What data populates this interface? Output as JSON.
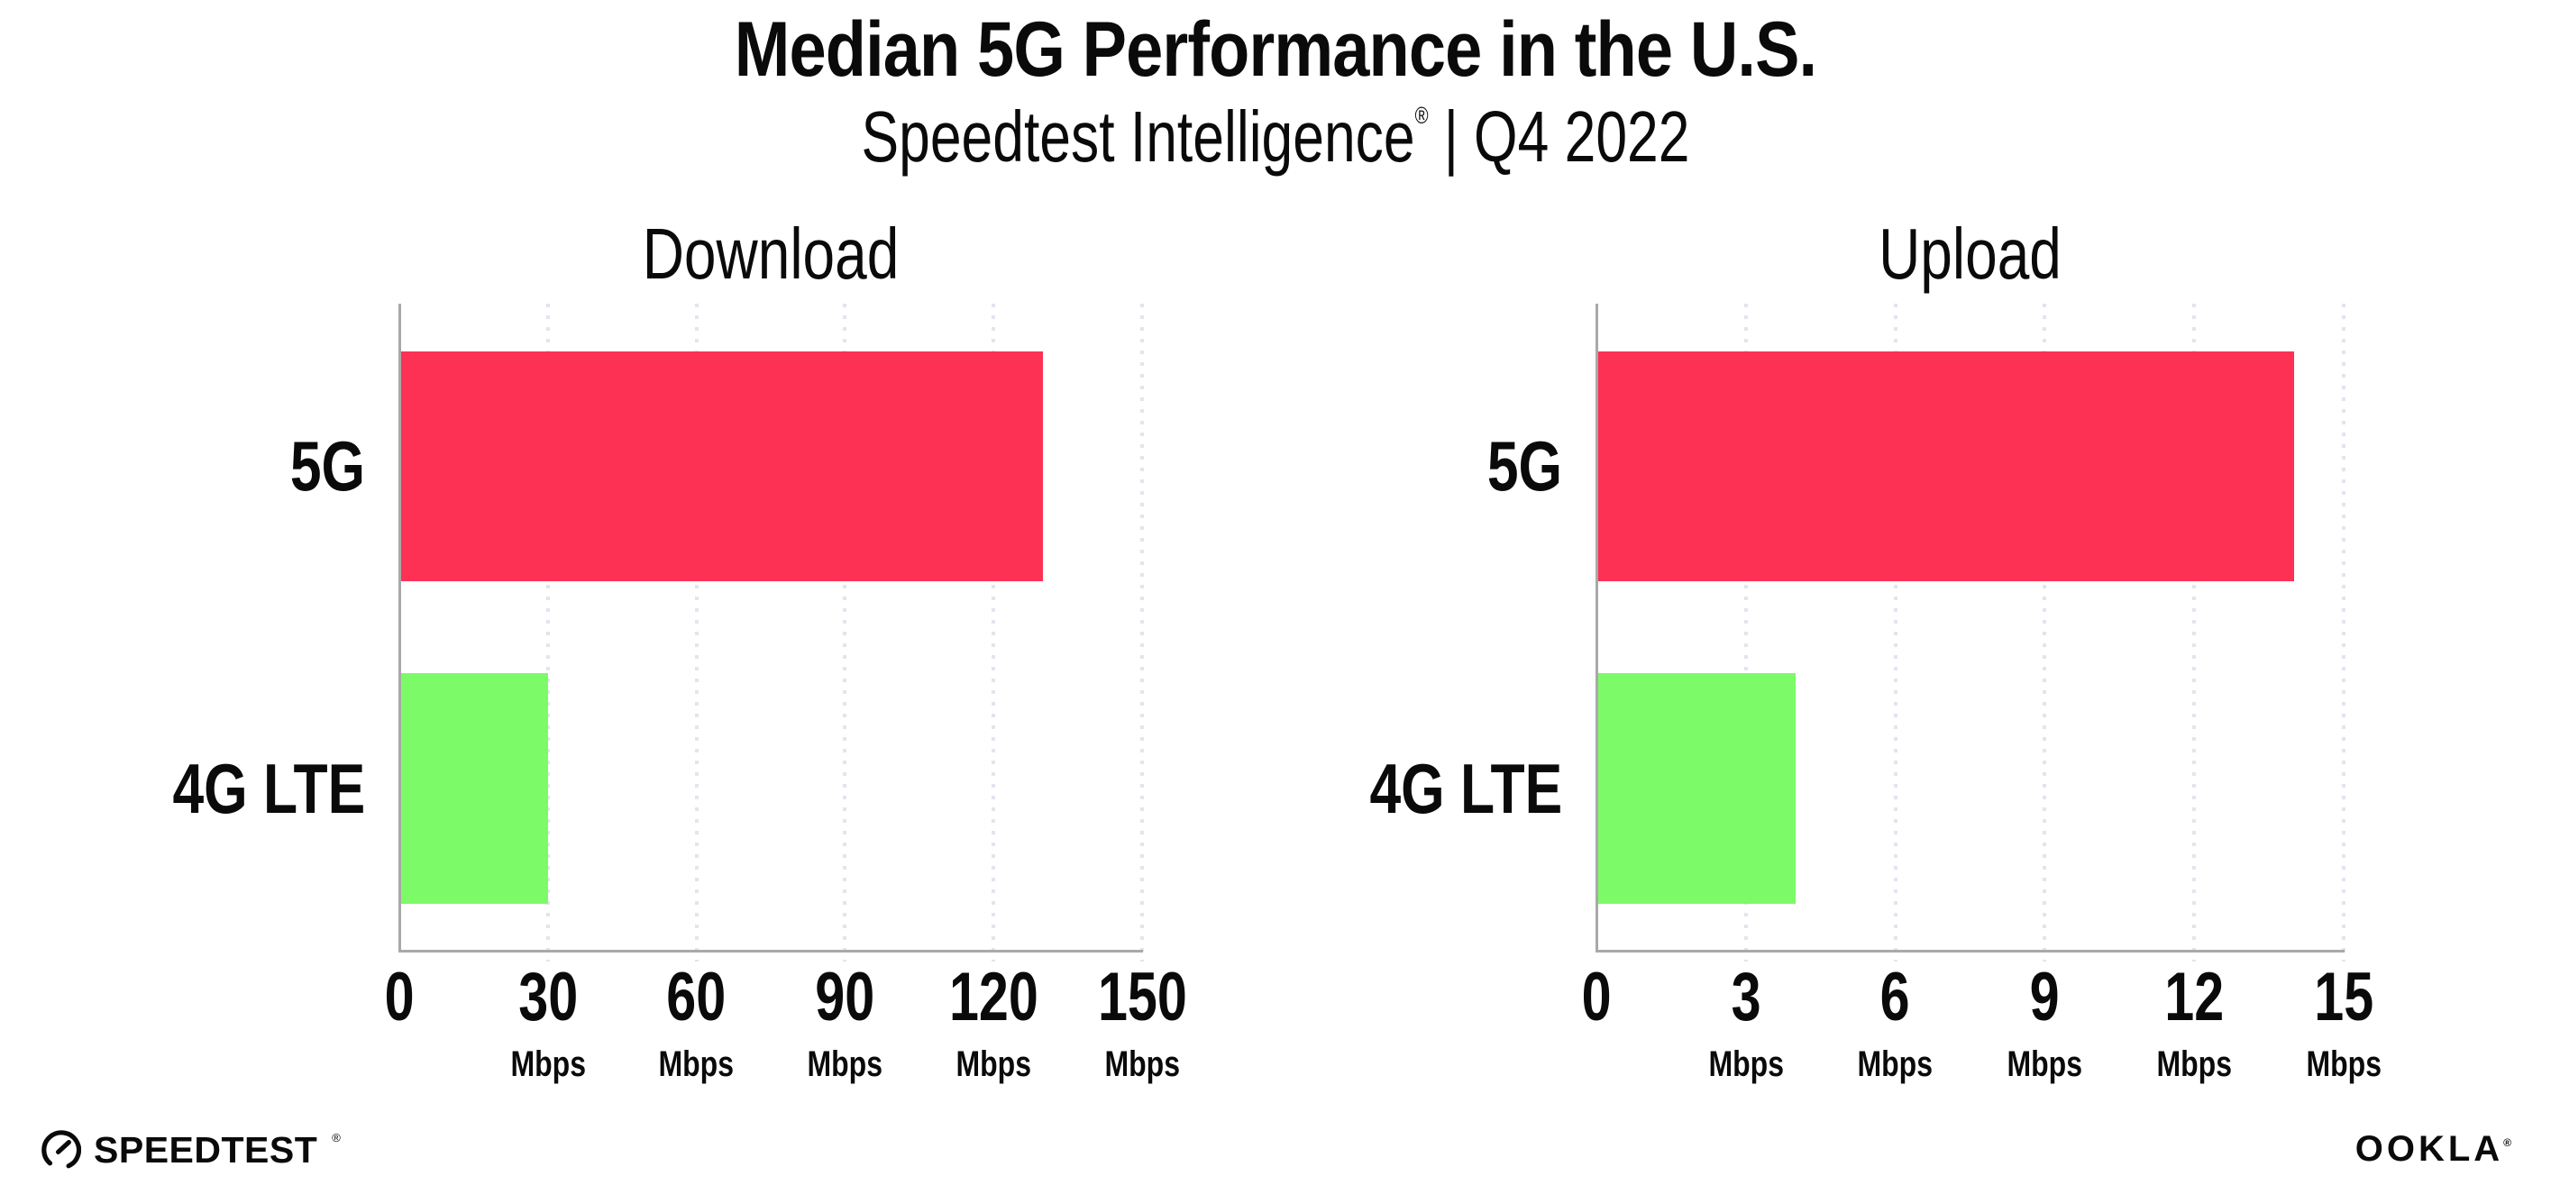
{
  "header": {
    "title": "Median 5G Performance in the U.S.",
    "subtitle": {
      "brand": "Speedtest Intelligence",
      "registered": "®",
      "separator": "|",
      "period": "Q4 2022"
    }
  },
  "chart_data": [
    {
      "type": "bar",
      "orientation": "horizontal",
      "title": "Download",
      "categories": [
        "5G",
        "4G LTE"
      ],
      "values": [
        130,
        30
      ],
      "unit": "Mbps",
      "bar_colors": [
        "#FC3154",
        "#7DFA68"
      ],
      "xlim": [
        0,
        150
      ],
      "xticks": [
        0,
        30,
        60,
        90,
        120,
        150
      ],
      "xtick_unit": "Mbps",
      "grid": "vertical-dotted",
      "legend": "none"
    },
    {
      "type": "bar",
      "orientation": "horizontal",
      "title": "Upload",
      "categories": [
        "5G",
        "4G LTE"
      ],
      "values": [
        14,
        4
      ],
      "unit": "Mbps",
      "bar_colors": [
        "#FC3154",
        "#7DFA68"
      ],
      "xlim": [
        0,
        15
      ],
      "xticks": [
        0,
        3,
        6,
        9,
        12,
        15
      ],
      "xtick_unit": "Mbps",
      "grid": "vertical-dotted",
      "legend": "none"
    }
  ],
  "footer": {
    "speedtest_label": "SPEEDTEST",
    "speedtest_mark": "®",
    "speedtest_icon": "speedtest-gauge-icon",
    "ookla_label": "OOKLA",
    "ookla_mark": "®"
  },
  "colors": {
    "bar_5g": "#FC3154",
    "bar_4g_lte": "#7DFA68",
    "gridline": "#E4E4EE",
    "axis_line": "#A9A9A9",
    "text": "#0A0A0A",
    "background": "#FFFFFF"
  }
}
